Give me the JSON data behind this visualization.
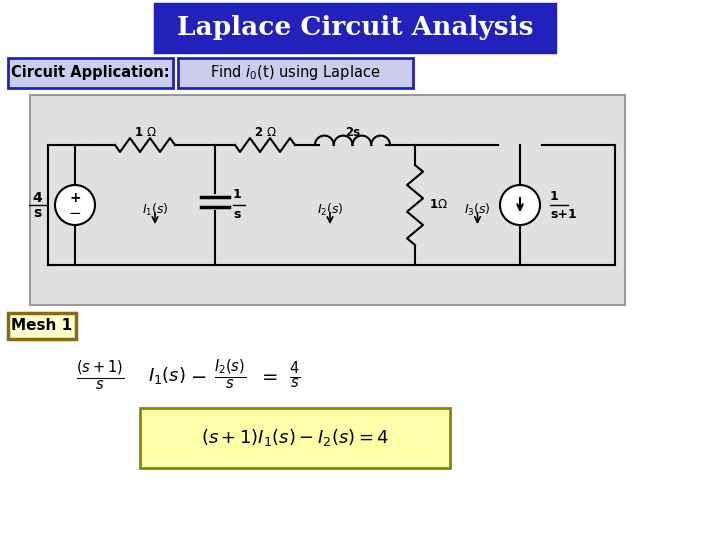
{
  "title": "Laplace Circuit Analysis",
  "subtitle_label": "Circuit Application:",
  "subtitle_text": "Find i₀(t) using Laplace",
  "mesh_label": "Mesh 1",
  "bg_color": "#ffffff",
  "title_bg": "#2222bb",
  "title_fg": "#ffffff",
  "title_border": "#2222bb",
  "subtitle_bg": "#ccccee",
  "subtitle_border": "#2222bb",
  "circuit_bg": "#e0e0e0",
  "circuit_border": "#999999",
  "mesh_box_border": "#8B6914",
  "mesh_box_bg": "#ffffcc",
  "yellow_box_bg": "#ffffaa",
  "yellow_box_border": "#888800",
  "eq_fontsize": 13,
  "ybox_fontsize": 13
}
